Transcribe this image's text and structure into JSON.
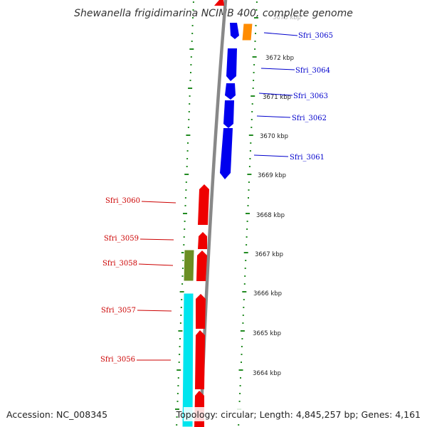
{
  "title": "Shewanella frigidimarina NCIMB 400, complete genome",
  "accession": "Accession: NC_008345",
  "topology": "Topology: circular; Length: 4,845,257 bp; Genes: 4,161",
  "colors": {
    "forward_strand": "#0000ee",
    "reverse_strand": "#ee0000",
    "orange_gene": "#ff8c00",
    "olive_gene": "#6b8e23",
    "cyan_gene": "#00e5ee",
    "backbone": "#888888",
    "ticks": "#228b22"
  },
  "scale_labels": [
    "3673 kbp",
    "3672 kbp",
    "3671 kbp",
    "3670 kbp",
    "3669 kbp",
    "3668 kbp",
    "3667 kbp",
    "3666 kbp",
    "3665 kbp",
    "3664 kbp"
  ],
  "gene_labels_forward": [
    "Sfri_3065",
    "Sfri_3064",
    "Sfri_3063",
    "Sfri_3062",
    "Sfri_3061"
  ],
  "gene_labels_reverse": [
    "Sfri_3060",
    "Sfri_3059",
    "Sfri_3058",
    "Sfri_3057",
    "Sfri_3056"
  ]
}
